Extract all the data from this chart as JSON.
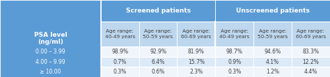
{
  "header1": "PSA level\n(ng/ml)",
  "header2": "Screened patients",
  "header3": "Unscreened patients",
  "subheaders": [
    "Age range:\n40-49 years",
    "Age range:\n50-59 years",
    "Age range:\n60-69 years",
    "Age range:\n40-49 years",
    "Age range:\n50-59 years",
    "Age range:\n60-69 years"
  ],
  "row_labels": [
    "0.00 – 3.99",
    "4.00 – 9.99",
    "≥ 10.00"
  ],
  "data": [
    [
      "98.9%",
      "92.9%",
      "81.9%",
      "98.7%",
      "94.6%",
      "83.3%"
    ],
    [
      "0.7%",
      "6.4%",
      "15.7%",
      "0.9%",
      "4.1%",
      "12.2%"
    ],
    [
      "0.3%",
      "0.6%",
      "2.3%",
      "0.3%",
      "1.2%",
      "4.4%"
    ]
  ],
  "header_bg": "#5b9bd5",
  "header_text": "#ffffff",
  "subheader_bg": "#bdd7ee",
  "subheader_text": "#404040",
  "row_bg_light": "#dce9f7",
  "row_bg_white": "#f0f5fb",
  "row_text": "#404040",
  "psa_col_bg": "#5b9bd5",
  "psa_col_text": "#ffffff",
  "psa_data_row_bg": "#bdd7ee",
  "border_color": "#ffffff",
  "figsize": [
    4.74,
    1.11
  ],
  "dpi": 100
}
